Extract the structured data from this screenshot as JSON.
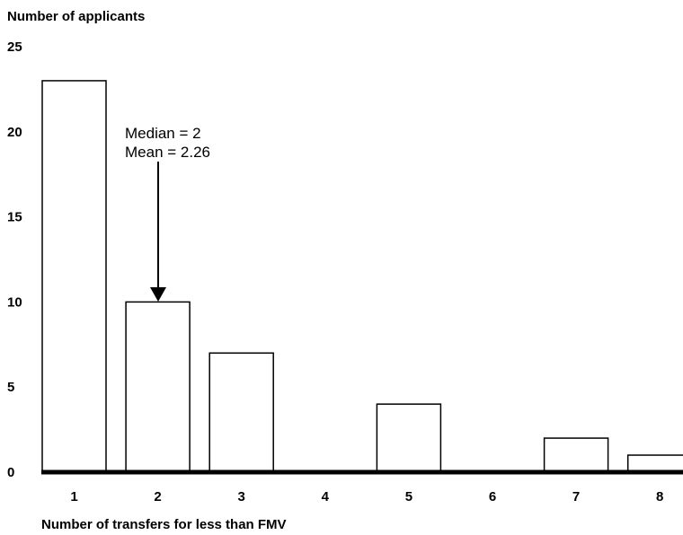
{
  "chart_data": {
    "type": "bar",
    "title": "",
    "ylabel": "Number of applicants",
    "xlabel": "Number of transfers for less than FMV",
    "categories": [
      "1",
      "2",
      "3",
      "4",
      "5",
      "6",
      "7",
      "8"
    ],
    "values": [
      23,
      10,
      7,
      0,
      4,
      0,
      2,
      1
    ],
    "ylim": [
      0,
      25
    ],
    "yticks": [
      "0",
      "5",
      "10",
      "15",
      "20",
      "25"
    ],
    "grid": false,
    "bar_fill": "#ffffff",
    "bar_stroke": "#000000",
    "annotation": {
      "lines": [
        "Median = 2",
        "Mean = 2.26"
      ],
      "points_to_category": "2"
    }
  }
}
